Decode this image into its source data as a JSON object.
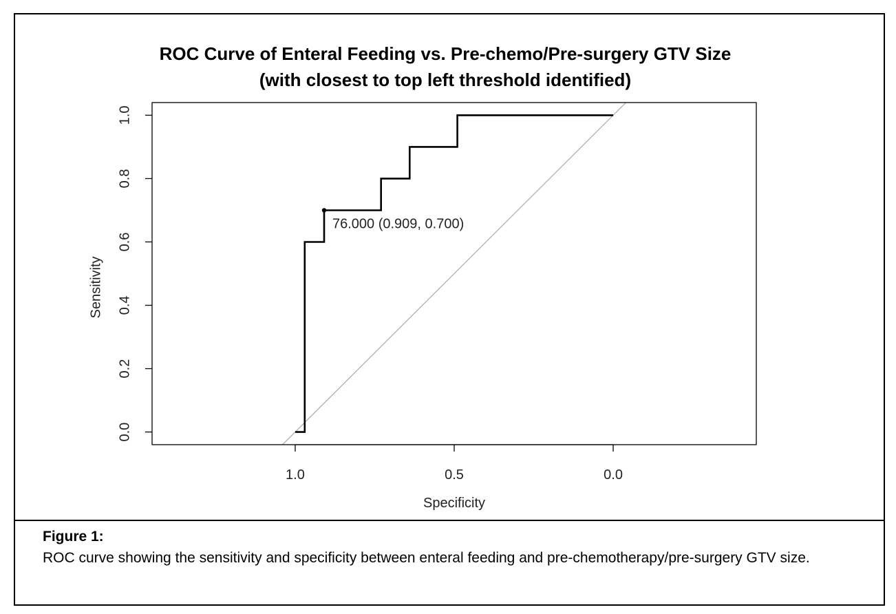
{
  "chart_data": {
    "type": "line",
    "title_lines": [
      "ROC Curve of Enteral Feeding vs. Pre-chemo/Pre-surgery GTV Size",
      "(with closest to top left threshold identified)"
    ],
    "xlabel": "Specificity",
    "ylabel": "Sensitivity",
    "x_reversed": true,
    "xlim": [
      1.45,
      -0.45
    ],
    "ylim": [
      -0.04,
      1.04
    ],
    "x_ticks": [
      1.0,
      0.5,
      0.0
    ],
    "x_tick_labels": [
      "1.0",
      "0.5",
      "0.0"
    ],
    "y_ticks": [
      0.0,
      0.2,
      0.4,
      0.6,
      0.8,
      1.0
    ],
    "y_tick_labels": [
      "0.0",
      "0.2",
      "0.4",
      "0.6",
      "0.8",
      "1.0"
    ],
    "grid": false,
    "reference_line": {
      "from": [
        1,
        0
      ],
      "to": [
        0,
        1
      ],
      "color": "#aaaaaa"
    },
    "series": [
      {
        "color": "#000000",
        "points": [
          [
            1.0,
            0.0
          ],
          [
            0.97,
            0.0
          ],
          [
            0.97,
            0.6
          ],
          [
            0.909,
            0.6
          ],
          [
            0.909,
            0.7
          ],
          [
            0.73,
            0.7
          ],
          [
            0.73,
            0.8
          ],
          [
            0.64,
            0.8
          ],
          [
            0.64,
            0.9
          ],
          [
            0.49,
            0.9
          ],
          [
            0.49,
            1.0
          ],
          [
            0.0,
            1.0
          ]
        ]
      }
    ],
    "threshold_point": {
      "x": 0.909,
      "y": 0.7,
      "label": "76.000 (0.909, 0.700)"
    }
  },
  "caption": {
    "label": "Figure 1:",
    "text": "ROC curve showing the sensitivity and specificity between enteral feeding and pre-chemotherapy/pre-surgery GTV size."
  }
}
